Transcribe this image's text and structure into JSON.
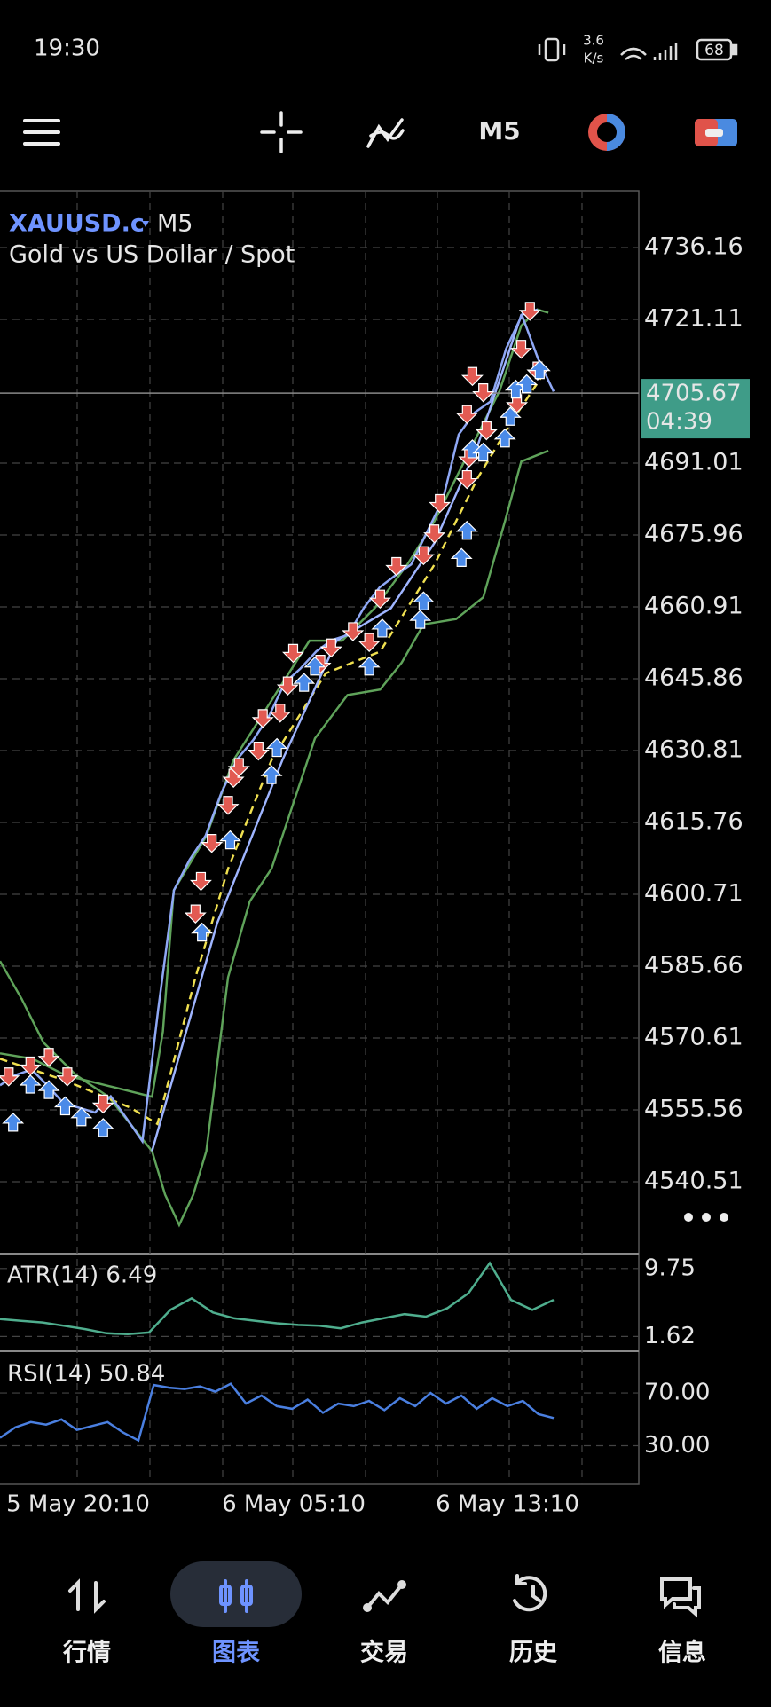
{
  "status_bar": {
    "time": "19:30",
    "net_speed": "3.6",
    "net_unit": "K/s",
    "battery": "68"
  },
  "toolbar": {
    "timeframe": "M5"
  },
  "chart_data": [
    {
      "type": "line",
      "symbol": "XAUUSD.c",
      "timeframe": "M5",
      "description": "Gold vs US Dollar / Spot",
      "values": [
        4560.7,
        4562.9,
        4564,
        4560.7,
        4557,
        4556,
        4555,
        4558.4,
        4553.8,
        4549,
        4576.6,
        4601.6,
        4608,
        4613,
        4622,
        4629,
        4633,
        4638,
        4645,
        4648,
        4651.6,
        4654,
        4655,
        4660.7,
        4665,
        4667.5,
        4669.8,
        4676.6,
        4683.4,
        4697,
        4701.6,
        4703.9,
        4715,
        4722,
        4713,
        4706
      ],
      "color": "#8fa8f5",
      "ylim": [
        4525.83,
        4748.05
      ],
      "yticks": [
        4736.16,
        4721.11,
        4691.01,
        4675.96,
        4660.91,
        4645.86,
        4630.81,
        4615.76,
        4600.71,
        4585.66,
        4570.61,
        4555.56,
        4540.51
      ],
      "current_price": 4705.67,
      "countdown": "04:39",
      "x_labels": [
        "5 May 20:10",
        "6 May 05:10",
        "6 May 13:10"
      ]
    },
    {
      "type": "line",
      "title": "ATR(14) 6.49",
      "values": [
        3.7,
        3.5,
        3.3,
        2.9,
        2.5,
        2.0,
        1.9,
        2.1,
        4.8,
        6.2,
        4.5,
        3.8,
        3.5,
        3.2,
        3.0,
        2.9,
        2.6,
        3.3,
        3.8,
        4.3,
        4.0,
        5.0,
        6.8,
        10.4,
        6.0,
        4.8,
        6.0
      ],
      "color": "#4fae8e",
      "ylim": [
        0.07,
        11.43
      ],
      "yticks": [
        9.75,
        1.62
      ]
    },
    {
      "type": "line",
      "title": "RSI(14) 50.84",
      "values": [
        36,
        44,
        48,
        46,
        50,
        42,
        45,
        48,
        40,
        34,
        76,
        74,
        73,
        75,
        71,
        77,
        62,
        68,
        60,
        58,
        65,
        55,
        62,
        60,
        64,
        57,
        66,
        60,
        70,
        62,
        68,
        58,
        66,
        60,
        64,
        54,
        51
      ],
      "color": "#4a7fe0",
      "ylim": [
        1.4,
        101
      ],
      "yticks": [
        {
          "value": 70,
          "label": "70.00"
        },
        {
          "value": 30,
          "label": "30.00"
        }
      ]
    }
  ],
  "nav": {
    "items": [
      "行情",
      "图表",
      "交易",
      "历史",
      "信息"
    ]
  }
}
